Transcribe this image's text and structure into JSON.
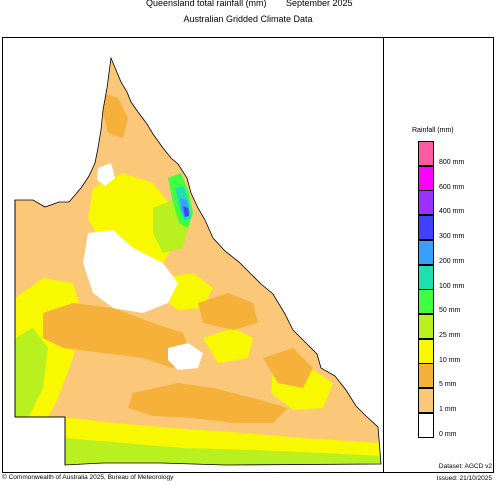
{
  "header": {
    "title": "Queensland total rainfall (mm)",
    "period": "September 2025",
    "subtitle": "Australian Gridded Climate Data"
  },
  "legend": {
    "title": "Rainfall (mm)",
    "items": [
      {
        "label": "800 mm",
        "color": "#ff5aa0"
      },
      {
        "label": "600 mm",
        "color": "#ff00ff"
      },
      {
        "label": "400 mm",
        "color": "#9b30ff"
      },
      {
        "label": "300 mm",
        "color": "#4040ff"
      },
      {
        "label": "200 mm",
        "color": "#3aa0ff"
      },
      {
        "label": "100 mm",
        "color": "#20e0b0"
      },
      {
        "label": "50 mm",
        "color": "#40ff40"
      },
      {
        "label": "25 mm",
        "color": "#b8f020"
      },
      {
        "label": "10 mm",
        "color": "#f8f800"
      },
      {
        "label": "5 mm",
        "color": "#f6b13a"
      },
      {
        "label": "1 mm",
        "color": "#fbc87a"
      },
      {
        "label": "0 mm",
        "color": "#ffffff"
      }
    ]
  },
  "footer": {
    "copyright": "© Commonwealth of Australia 2025, Bureau of Meteorology",
    "dataset": "Dataset: AGCD v2",
    "issued": "Issued: 21/10/2025"
  }
}
